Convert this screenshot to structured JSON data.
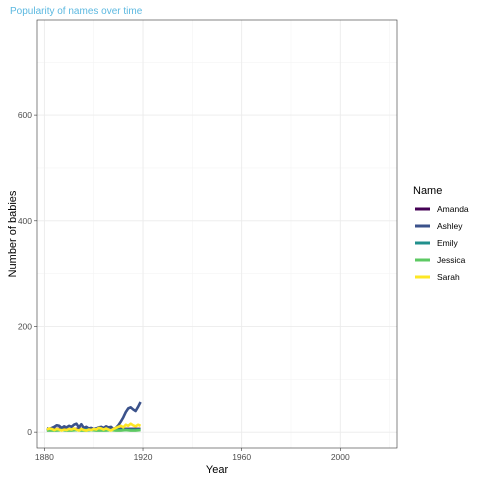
{
  "chart_data": {
    "type": "line",
    "title": "Popularity of names over time",
    "xlabel": "Year",
    "ylabel": "Number of babies",
    "xlim": [
      1877,
      2023
    ],
    "ylim": [
      -30,
      780
    ],
    "x_ticks": [
      1880,
      1920,
      1960,
      2000
    ],
    "y_ticks": [
      0,
      200,
      400,
      600
    ],
    "grid": true,
    "legend": {
      "title": "Name",
      "position": "right"
    },
    "series": [
      {
        "name": "Amanda",
        "color": "#440154",
        "x": [
          1881,
          1883,
          1885,
          1887,
          1889,
          1891,
          1893,
          1895,
          1897,
          1899,
          1901,
          1903,
          1905,
          1907,
          1909,
          1911,
          1913,
          1915,
          1917,
          1919
        ],
        "y": [
          6,
          5,
          6,
          6,
          6,
          5,
          6,
          6,
          5,
          6,
          5,
          6,
          6,
          6,
          5,
          6,
          6,
          6,
          6,
          6
        ]
      },
      {
        "name": "Ashley",
        "color": "#3b528b",
        "x": [
          1881,
          1882,
          1883,
          1884,
          1885,
          1886,
          1887,
          1888,
          1889,
          1890,
          1891,
          1892,
          1893,
          1894,
          1895,
          1896,
          1897,
          1898,
          1899,
          1900,
          1901,
          1902,
          1903,
          1904,
          1905,
          1906,
          1907,
          1908,
          1909,
          1910,
          1911,
          1912,
          1913,
          1914,
          1915,
          1916,
          1917,
          1918,
          1919
        ],
        "y": [
          7,
          6,
          8,
          10,
          13,
          12,
          8,
          11,
          9,
          12,
          10,
          14,
          16,
          9,
          15,
          8,
          10,
          7,
          8,
          6,
          7,
          9,
          10,
          8,
          11,
          9,
          10,
          6,
          8,
          13,
          20,
          28,
          38,
          45,
          47,
          43,
          40,
          48,
          57
        ]
      },
      {
        "name": "Emily",
        "color": "#21908d",
        "x": [
          1881,
          1883,
          1885,
          1887,
          1889,
          1891,
          1893,
          1895,
          1897,
          1899,
          1901,
          1903,
          1905,
          1907,
          1909,
          1911,
          1913,
          1915,
          1917,
          1919
        ],
        "y": [
          4,
          4,
          5,
          4,
          4,
          5,
          4,
          4,
          5,
          4,
          4,
          5,
          4,
          4,
          5,
          5,
          5,
          5,
          5,
          5
        ]
      },
      {
        "name": "Jessica",
        "color": "#5dc963",
        "x": [
          1881,
          1883,
          1885,
          1887,
          1889,
          1891,
          1893,
          1895,
          1897,
          1899,
          1901,
          1903,
          1905,
          1907,
          1909,
          1911,
          1913,
          1915,
          1917,
          1919
        ],
        "y": [
          3,
          3,
          3,
          4,
          3,
          3,
          4,
          3,
          3,
          4,
          3,
          3,
          3,
          4,
          3,
          3,
          4,
          3,
          3,
          4
        ]
      },
      {
        "name": "Sarah",
        "color": "#fde725",
        "x": [
          1881,
          1882,
          1883,
          1884,
          1885,
          1886,
          1887,
          1888,
          1889,
          1890,
          1891,
          1892,
          1893,
          1894,
          1895,
          1896,
          1897,
          1898,
          1899,
          1900,
          1901,
          1902,
          1903,
          1904,
          1905,
          1906,
          1907,
          1908,
          1909,
          1910,
          1911,
          1912,
          1913,
          1914,
          1915,
          1916,
          1917,
          1918,
          1919
        ],
        "y": [
          5,
          7,
          6,
          4,
          6,
          5,
          3,
          5,
          4,
          6,
          5,
          7,
          5,
          3,
          6,
          4,
          3,
          5,
          4,
          6,
          5,
          8,
          7,
          5,
          7,
          5,
          3,
          6,
          8,
          10,
          12,
          9,
          14,
          12,
          16,
          13,
          11,
          14,
          12
        ]
      }
    ]
  }
}
